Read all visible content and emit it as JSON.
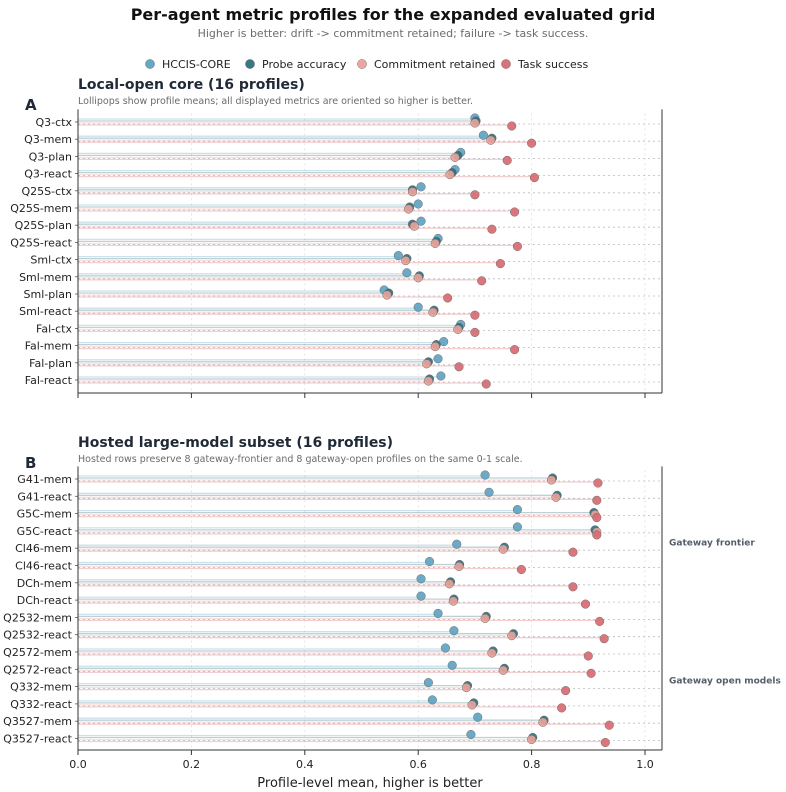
{
  "title": "Per-agent metric profiles for the expanded evaluated grid",
  "subtitle": "Higher is better: drift -> commitment retained; failure -> task success.",
  "colors": {
    "hccis": "#5fa3c2",
    "probe": "#2f6f7e",
    "commitment": "#e8a29a",
    "task": "#d96a72"
  },
  "chart_data": [
    {
      "type": "lollipop",
      "panel": "A",
      "title": "Local-open core (16 profiles)",
      "subtitle": "Lollipops show profile means; all displayed metrics are oriented so higher is better.",
      "xlim": [
        0,
        1.03
      ],
      "xticks": [
        "0.0",
        "0.2",
        "0.4",
        "0.6",
        "0.8",
        "1.0"
      ],
      "xlabel": "",
      "grid": "dotted horizontal and vertical",
      "legend": "top-center",
      "series_names": [
        "HCCIS-CORE",
        "Probe accuracy",
        "Commitment retained",
        "Task success"
      ],
      "group_labels": [],
      "categories": [
        "Q3-ctx",
        "Q3-mem",
        "Q3-plan",
        "Q3-react",
        "Q25S-ctx",
        "Q25S-mem",
        "Q25S-plan",
        "Q25S-react",
        "Sml-ctx",
        "Sml-mem",
        "Sml-plan",
        "Sml-react",
        "Fal-ctx",
        "Fal-mem",
        "Fal-plan",
        "Fal-react"
      ],
      "series": [
        {
          "name": "HCCIS-CORE",
          "values": [
            0.7,
            0.715,
            0.675,
            0.665,
            0.605,
            0.6,
            0.605,
            0.635,
            0.565,
            0.58,
            0.54,
            0.6,
            0.675,
            0.645,
            0.635,
            0.64
          ]
        },
        {
          "name": "Probe accuracy",
          "values": [
            0.702,
            0.73,
            0.67,
            0.66,
            0.59,
            0.585,
            0.59,
            0.632,
            0.58,
            0.602,
            0.548,
            0.628,
            0.672,
            0.632,
            0.618,
            0.62
          ]
        },
        {
          "name": "Commitment retained",
          "values": [
            0.7,
            0.728,
            0.665,
            0.656,
            0.59,
            0.583,
            0.593,
            0.63,
            0.578,
            0.6,
            0.545,
            0.626,
            0.67,
            0.63,
            0.615,
            0.618
          ]
        },
        {
          "name": "Task success",
          "values": [
            0.765,
            0.8,
            0.757,
            0.805,
            0.7,
            0.77,
            0.73,
            0.775,
            0.745,
            0.712,
            0.652,
            0.7,
            0.7,
            0.77,
            0.672,
            0.72
          ]
        }
      ]
    },
    {
      "type": "lollipop",
      "panel": "B",
      "title": "Hosted large-model subset (16 profiles)",
      "subtitle": "Hosted rows preserve 8 gateway-frontier and 8 gateway-open profiles on the same 0-1 scale.",
      "xlim": [
        0,
        1.03
      ],
      "xticks": [
        "0.0",
        "0.2",
        "0.4",
        "0.6",
        "0.8",
        "1.0"
      ],
      "xlabel": "Profile-level mean, higher is better",
      "grid": "dotted horizontal and vertical",
      "group_labels": [
        "Gateway frontier",
        "Gateway open models"
      ],
      "categories": [
        "G41-mem",
        "G41-react",
        "G5C-mem",
        "G5C-react",
        "Cl46-mem",
        "Cl46-react",
        "DCh-mem",
        "DCh-react",
        "Q2532-mem",
        "Q2532-react",
        "Q2572-mem",
        "Q2572-react",
        "Q332-mem",
        "Q332-react",
        "Q3527-mem",
        "Q3527-react"
      ],
      "series": [
        {
          "name": "HCCIS-CORE",
          "values": [
            0.718,
            0.725,
            0.775,
            0.775,
            0.668,
            0.62,
            0.605,
            0.605,
            0.635,
            0.663,
            0.648,
            0.66,
            0.618,
            0.625,
            0.705,
            0.693
          ]
        },
        {
          "name": "Probe accuracy",
          "values": [
            0.837,
            0.845,
            0.91,
            0.912,
            0.752,
            0.673,
            0.657,
            0.663,
            0.72,
            0.768,
            0.732,
            0.752,
            0.687,
            0.698,
            0.822,
            0.802
          ]
        },
        {
          "name": "Commitment retained",
          "values": [
            0.835,
            0.843,
            0.912,
            0.915,
            0.75,
            0.672,
            0.655,
            0.662,
            0.718,
            0.765,
            0.73,
            0.75,
            0.685,
            0.695,
            0.82,
            0.8
          ]
        },
        {
          "name": "Task success",
          "values": [
            0.917,
            0.915,
            0.915,
            0.915,
            0.873,
            0.782,
            0.873,
            0.895,
            0.92,
            0.928,
            0.9,
            0.905,
            0.86,
            0.853,
            0.937,
            0.93
          ]
        }
      ]
    }
  ]
}
